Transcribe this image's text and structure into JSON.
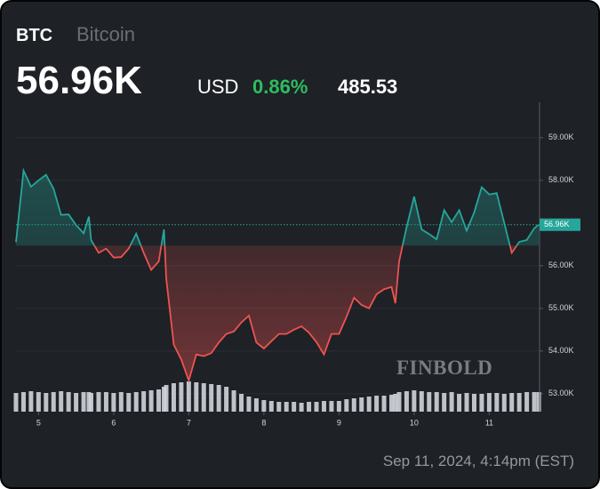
{
  "header": {
    "symbol": "BTC",
    "name": "Bitcoin",
    "currency": "USD",
    "change_percent": "0.86%",
    "change": "485.53"
  },
  "chart_data": {
    "type": "line",
    "x": [
      4.7,
      4.8,
      4.9,
      5.0,
      5.1,
      5.2,
      5.3,
      5.4,
      5.5,
      5.6,
      5.67,
      5.7,
      5.8,
      5.9,
      6.0,
      6.1,
      6.2,
      6.3,
      6.4,
      6.5,
      6.6,
      6.67,
      6.7,
      6.8,
      6.9,
      7.0,
      7.1,
      7.2,
      7.3,
      7.4,
      7.5,
      7.6,
      7.7,
      7.8,
      7.9,
      8.0,
      8.1,
      8.2,
      8.3,
      8.4,
      8.5,
      8.6,
      8.7,
      8.8,
      8.9,
      9.0,
      9.1,
      9.2,
      9.3,
      9.4,
      9.5,
      9.6,
      9.7,
      9.75,
      9.8,
      9.9,
      10.0,
      10.1,
      10.2,
      10.3,
      10.4,
      10.5,
      10.6,
      10.7,
      10.8,
      10.9,
      11.0,
      11.1,
      11.2,
      11.3,
      11.4,
      11.5,
      11.6,
      11.66
    ],
    "series": [
      {
        "up_color": "#26a69a",
        "down_color": "#ef5350",
        "values": [
          56.55,
          58.23,
          57.85,
          58.0,
          58.13,
          57.8,
          57.19,
          57.2,
          56.95,
          56.76,
          57.15,
          56.6,
          56.3,
          56.4,
          56.19,
          56.2,
          56.4,
          56.75,
          56.3,
          55.9,
          56.1,
          56.85,
          55.7,
          54.15,
          53.8,
          53.31,
          53.92,
          53.88,
          53.95,
          54.2,
          54.4,
          54.46,
          54.67,
          54.83,
          54.2,
          54.06,
          54.23,
          54.4,
          54.4,
          54.5,
          54.58,
          54.43,
          54.21,
          53.92,
          54.4,
          54.4,
          54.8,
          55.25,
          55.08,
          55.0,
          55.33,
          55.45,
          55.5,
          55.12,
          56.1,
          56.9,
          57.62,
          56.85,
          56.74,
          56.62,
          57.3,
          57.02,
          57.3,
          56.82,
          57.25,
          57.84,
          57.67,
          57.7,
          57.0,
          56.3,
          56.56,
          56.6,
          56.88,
          56.96
        ]
      }
    ],
    "volume": {
      "color": "#d1d4dc",
      "values": [
        21,
        22,
        23,
        22,
        21,
        22,
        23,
        22,
        21,
        22,
        22,
        21,
        22,
        22,
        21,
        22,
        21,
        22,
        23,
        24,
        25,
        28,
        30,
        32,
        33,
        34,
        33,
        32,
        31,
        30,
        28,
        24,
        20,
        17,
        15,
        13,
        12,
        11,
        11,
        11,
        10,
        11,
        11,
        12,
        12,
        12,
        14,
        15,
        16,
        17,
        18,
        18,
        19,
        20,
        22,
        23,
        24,
        23,
        22,
        22,
        21,
        22,
        20,
        21,
        20,
        20,
        21,
        21,
        20,
        21,
        21,
        22,
        22,
        22
      ]
    },
    "baseline": 56.47,
    "last_price": {
      "value": 56.96,
      "label": "56.96K",
      "color": "#26a69a"
    },
    "xlim": [
      4.7,
      11.67
    ],
    "ylim": [
      52.58,
      59.83
    ],
    "xticks": [
      5,
      6,
      7,
      8,
      9,
      10,
      11
    ],
    "yticks": [
      {
        "value": 53,
        "label": "53.00K"
      },
      {
        "value": 54,
        "label": "54.00K"
      },
      {
        "value": 55,
        "label": "55.00K"
      },
      {
        "value": 56,
        "label": "56.00K"
      },
      {
        "value": 58,
        "label": "58.00K"
      },
      {
        "value": 59,
        "label": "59.00K"
      }
    ],
    "grid": true
  },
  "watermark": "FINBOLD",
  "footer": {
    "timestamp": "Sep 11, 2024, 4:14pm (EST)"
  }
}
